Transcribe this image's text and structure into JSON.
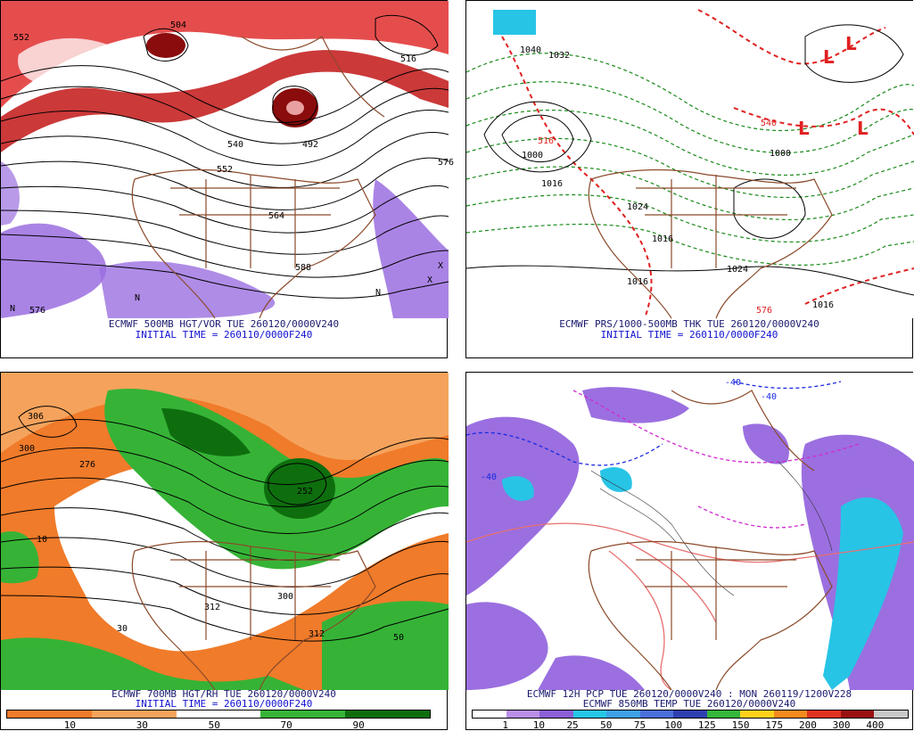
{
  "panels": [
    {
      "id": "p1",
      "caption1": "ECMWF 500MB HGT/VOR TUE 260120/0000V240",
      "caption2": "INITIAL TIME = 260110/0000F240",
      "labels": [
        "552",
        "516",
        "492",
        "540",
        "552",
        "564",
        "576",
        "588",
        "576",
        "504"
      ]
    },
    {
      "id": "p2",
      "caption1": "ECMWF PRS/1000-500MB THK TUE 260120/0000V240",
      "caption2": "INITIAL TIME = 260110/0000F240",
      "labels": [
        "1040",
        "1032",
        "1000",
        "1016",
        "1024",
        "1016",
        "1024",
        "1016",
        "1000",
        "516",
        "576",
        "540",
        "1016"
      ]
    },
    {
      "id": "p3",
      "caption1": "ECMWF 700MB HGT/RH TUE 260120/0000V240",
      "caption2": "INITIAL TIME = 260110/0000F240",
      "labels": [
        "306",
        "276",
        "300",
        "252",
        "312",
        "312",
        "300",
        "10",
        "30",
        "50"
      ]
    },
    {
      "id": "p4",
      "caption1": "ECMWF 12H PCP TUE 260120/0000V240 : MON 260119/1200V228",
      "caption2": "ECMWF 850MB TEMP TUE 260120/0000V240",
      "labels": [
        "-40",
        "-40",
        "-40"
      ]
    }
  ],
  "colorbar_rh": {
    "ticks": [
      "10",
      "30",
      "50",
      "70",
      "90"
    ],
    "colors": [
      "#f07b2a",
      "#f07b2a",
      "#f5a35c",
      "#f5a35c",
      "#ffffff",
      "#ffffff",
      "#36b336",
      "#36b336",
      "#0e6e0e",
      "#0e6e0e"
    ]
  },
  "colorbar_pcp": {
    "ticks": [
      "1",
      "10",
      "25",
      "50",
      "75",
      "100",
      "125",
      "150",
      "175",
      "200",
      "300",
      "400"
    ],
    "colors": [
      "#ffffff",
      "#b98ee6",
      "#8b5fd6",
      "#25c6e6",
      "#3fa0e8",
      "#4a6fd8",
      "#2e3fb0",
      "#35b53a",
      "#ffd21a",
      "#f58a1e",
      "#e0321e",
      "#9a1010",
      "#c8c8c8"
    ]
  },
  "marks": {
    "low": "L",
    "x": "X",
    "n": "N"
  }
}
